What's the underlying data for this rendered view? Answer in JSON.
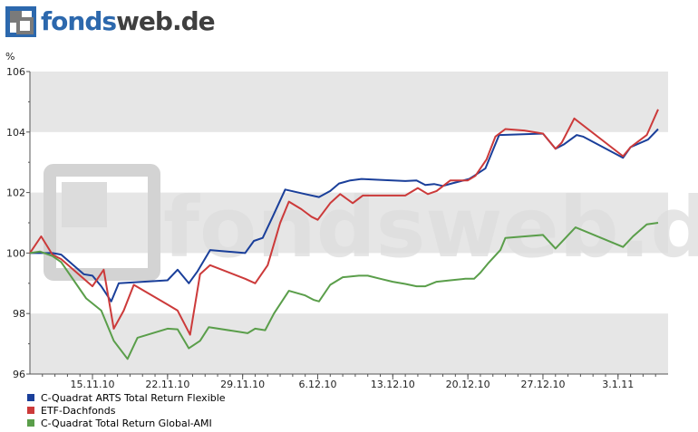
{
  "brand": {
    "part1": "fonds",
    "part2": "web",
    "part3": ".de",
    "color1": "#2c68ad",
    "color2": "#3f3f3f"
  },
  "watermark": "fondsweb.de",
  "chart_data": {
    "type": "line",
    "ylabel": "%",
    "ylim": [
      96,
      106
    ],
    "yticks": [
      96,
      98,
      100,
      102,
      104,
      106
    ],
    "grid": true,
    "legend_position": "bottom-left",
    "xlim": [
      0,
      51
    ],
    "x_tick_labels": [
      {
        "label": "15.11.10",
        "x": 5
      },
      {
        "label": "22.11.10",
        "x": 11
      },
      {
        "label": "29.11.10",
        "x": 17
      },
      {
        "label": "6.12.10",
        "x": 23
      },
      {
        "label": "13.12.10",
        "x": 29
      },
      {
        "label": "20.12.10",
        "x": 35
      },
      {
        "label": "27.12.10",
        "x": 41
      },
      {
        "label": "3.1.11",
        "x": 47
      }
    ],
    "series": [
      {
        "name": "C-Quadrat ARTS Total Return Flexible",
        "color": "#1a3f9a",
        "points": [
          [
            0,
            100.0
          ],
          [
            1.8,
            100.0
          ],
          [
            2.5,
            99.95
          ],
          [
            4.3,
            99.3
          ],
          [
            5,
            99.25
          ],
          [
            5.7,
            98.9
          ],
          [
            6.5,
            98.4
          ],
          [
            7.1,
            99.0
          ],
          [
            11,
            99.1
          ],
          [
            11.8,
            99.45
          ],
          [
            12.7,
            99.0
          ],
          [
            13.4,
            99.4
          ],
          [
            14.4,
            100.1
          ],
          [
            17.2,
            100.0
          ],
          [
            17.9,
            100.4
          ],
          [
            18.6,
            100.5
          ],
          [
            19.4,
            101.2
          ],
          [
            20.4,
            102.1
          ],
          [
            22,
            101.95
          ],
          [
            23.1,
            101.85
          ],
          [
            24,
            102.05
          ],
          [
            24.7,
            102.3
          ],
          [
            25.6,
            102.4
          ],
          [
            26.5,
            102.45
          ],
          [
            28,
            102.42
          ],
          [
            30,
            102.38
          ],
          [
            30.9,
            102.4
          ],
          [
            31.6,
            102.25
          ],
          [
            32.3,
            102.28
          ],
          [
            33,
            102.22
          ],
          [
            33.7,
            102.3
          ],
          [
            35.1,
            102.45
          ],
          [
            35.5,
            102.55
          ],
          [
            36.4,
            102.8
          ],
          [
            37.5,
            103.9
          ],
          [
            41,
            103.95
          ],
          [
            42,
            103.45
          ],
          [
            42.7,
            103.6
          ],
          [
            43.7,
            103.9
          ],
          [
            44.2,
            103.85
          ],
          [
            47.4,
            103.15
          ],
          [
            48,
            103.5
          ],
          [
            49.4,
            103.75
          ],
          [
            50.2,
            104.1
          ]
        ]
      },
      {
        "name": "ETF-Dachfonds",
        "color": "#cc3a3a",
        "points": [
          [
            0,
            100.0
          ],
          [
            0.9,
            100.55
          ],
          [
            1.8,
            99.95
          ],
          [
            2.5,
            99.8
          ],
          [
            5,
            98.9
          ],
          [
            5.9,
            99.45
          ],
          [
            6.7,
            97.5
          ],
          [
            7.5,
            98.1
          ],
          [
            8.3,
            98.95
          ],
          [
            11,
            98.3
          ],
          [
            11.8,
            98.1
          ],
          [
            12.8,
            97.3
          ],
          [
            13.6,
            99.3
          ],
          [
            14.4,
            99.6
          ],
          [
            17.2,
            99.15
          ],
          [
            18,
            99.0
          ],
          [
            19,
            99.6
          ],
          [
            20,
            101.0
          ],
          [
            20.7,
            101.7
          ],
          [
            21.7,
            101.45
          ],
          [
            22.5,
            101.2
          ],
          [
            23,
            101.1
          ],
          [
            24,
            101.65
          ],
          [
            24.8,
            101.95
          ],
          [
            25.8,
            101.65
          ],
          [
            26.6,
            101.9
          ],
          [
            28,
            101.9
          ],
          [
            30,
            101.9
          ],
          [
            31,
            102.15
          ],
          [
            31.8,
            101.95
          ],
          [
            32.5,
            102.05
          ],
          [
            33.6,
            102.4
          ],
          [
            35,
            102.4
          ],
          [
            35.6,
            102.55
          ],
          [
            36.5,
            103.1
          ],
          [
            37.2,
            103.85
          ],
          [
            38,
            104.1
          ],
          [
            39.5,
            104.05
          ],
          [
            41,
            103.95
          ],
          [
            42,
            103.45
          ],
          [
            42.5,
            103.65
          ],
          [
            43.5,
            104.45
          ],
          [
            47.4,
            103.2
          ],
          [
            48,
            103.5
          ],
          [
            49.3,
            103.9
          ],
          [
            50.2,
            104.75
          ]
        ]
      },
      {
        "name": "C-Quadrat Total Return Global-AMI",
        "color": "#5a9e4a",
        "points": [
          [
            0,
            100.0
          ],
          [
            0.8,
            100.05
          ],
          [
            1.8,
            99.9
          ],
          [
            2.5,
            99.7
          ],
          [
            4.5,
            98.5
          ],
          [
            5.7,
            98.1
          ],
          [
            6.7,
            97.1
          ],
          [
            7.8,
            96.5
          ],
          [
            8.6,
            97.2
          ],
          [
            11,
            97.5
          ],
          [
            11.8,
            97.48
          ],
          [
            12.7,
            96.85
          ],
          [
            13.6,
            97.1
          ],
          [
            14.3,
            97.55
          ],
          [
            17.4,
            97.35
          ],
          [
            18,
            97.5
          ],
          [
            18.8,
            97.45
          ],
          [
            19.5,
            98.0
          ],
          [
            20.7,
            98.75
          ],
          [
            22,
            98.6
          ],
          [
            22.7,
            98.45
          ],
          [
            23.1,
            98.4
          ],
          [
            24,
            98.95
          ],
          [
            25,
            99.2
          ],
          [
            26.3,
            99.25
          ],
          [
            27,
            99.25
          ],
          [
            28,
            99.15
          ],
          [
            29,
            99.05
          ],
          [
            30,
            98.98
          ],
          [
            30.9,
            98.9
          ],
          [
            31.6,
            98.9
          ],
          [
            32.5,
            99.05
          ],
          [
            33.6,
            99.1
          ],
          [
            34.8,
            99.15
          ],
          [
            35.5,
            99.15
          ],
          [
            36,
            99.35
          ],
          [
            36.6,
            99.65
          ],
          [
            37.6,
            100.1
          ],
          [
            38,
            100.5
          ],
          [
            41,
            100.6
          ],
          [
            42,
            100.15
          ],
          [
            43.6,
            100.85
          ],
          [
            47.4,
            100.2
          ],
          [
            48.2,
            100.55
          ],
          [
            49.3,
            100.95
          ],
          [
            50.2,
            101.0
          ]
        ]
      }
    ]
  }
}
